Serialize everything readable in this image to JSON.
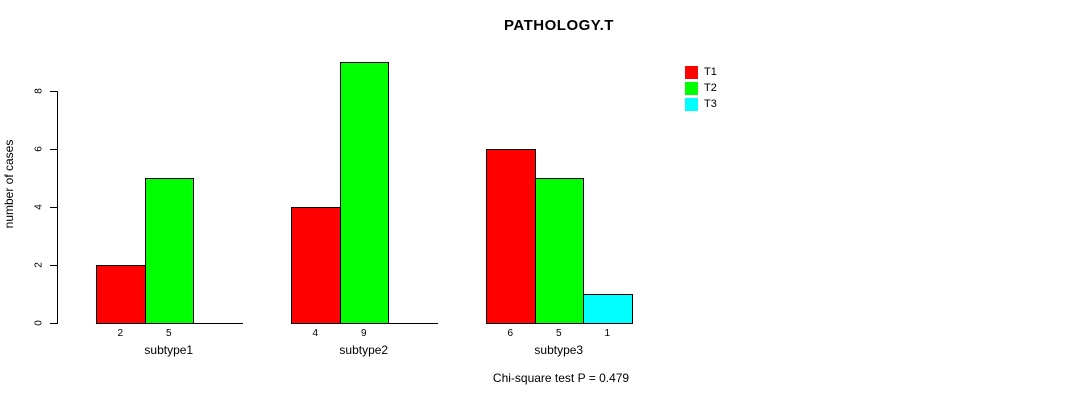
{
  "chart_data": {
    "type": "bar",
    "title": "PATHOLOGY.T",
    "xlabel": "",
    "ylabel": "number of cases",
    "footer": "Chi-square test P = 0.479",
    "categories": [
      "subtype1",
      "subtype2",
      "subtype3"
    ],
    "series": [
      {
        "name": "T1",
        "color": "#ff0000",
        "values": [
          2,
          4,
          6
        ]
      },
      {
        "name": "T2",
        "color": "#00ff00",
        "values": [
          5,
          9,
          5
        ]
      },
      {
        "name": "T3",
        "color": "#00ffff",
        "values": [
          0,
          0,
          1
        ]
      }
    ],
    "bar_value_labels": [
      [
        "2",
        "5",
        ""
      ],
      [
        "4",
        "9",
        ""
      ],
      [
        "6",
        "5",
        "1"
      ]
    ],
    "y_ticks": [
      0,
      2,
      4,
      6,
      8
    ],
    "ylim": [
      0,
      9
    ],
    "grid": false,
    "legend_position": "right-of-plot",
    "background_color": "#ffffff",
    "text_color": "#000000"
  }
}
